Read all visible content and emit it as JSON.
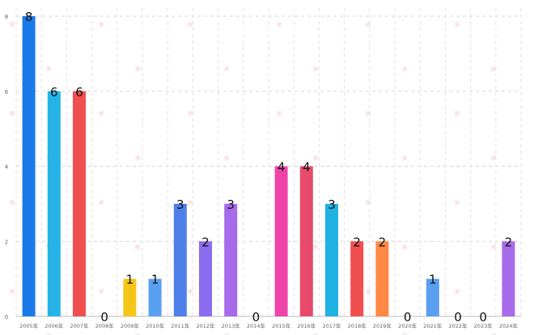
{
  "chart_data": {
    "type": "bar",
    "title": "",
    "xlabel": "",
    "ylabel": "",
    "ylim": [
      0,
      8
    ],
    "y_ticks": [
      "0",
      "2",
      "4",
      "6",
      "8"
    ],
    "grid": true,
    "categories": [
      "2005年",
      "2006年",
      "2007年",
      "2008年",
      "2009年",
      "2010年",
      "2011年",
      "2012年",
      "2013年",
      "2014年",
      "2015年",
      "2016年",
      "2017年",
      "2018年",
      "2019年",
      "2020年",
      "2021年",
      "2022年",
      "2023年",
      "2024年"
    ],
    "values": [
      8,
      6,
      6,
      0,
      1,
      1,
      3,
      2,
      3,
      0,
      4,
      4,
      3,
      2,
      2,
      0,
      1,
      0,
      0,
      2
    ],
    "colors": [
      "#1a7ae8",
      "#25b3e8",
      "#f04f4f",
      "#cccccc",
      "#f5c518",
      "#5aa0f0",
      "#4f7fe8",
      "#8b6bef",
      "#a66be8",
      "#cccccc",
      "#ee44aa",
      "#e84a6a",
      "#1fb2e3",
      "#f04f4f",
      "#ff8844",
      "#cccccc",
      "#5a9ef0",
      "#cccccc",
      "#cccccc",
      "#a66be8"
    ]
  }
}
